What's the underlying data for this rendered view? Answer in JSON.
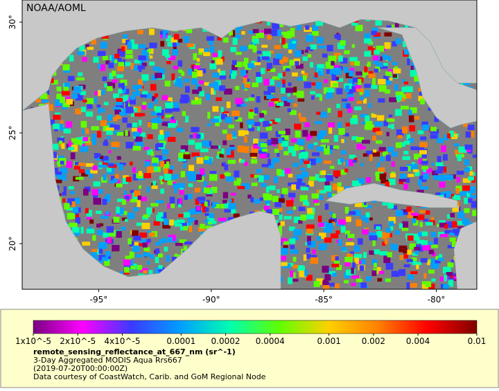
{
  "map": {
    "credit": "NOAA/AOML",
    "lonlim": [
      -98.4,
      -78.2
    ],
    "latlim": [
      17.94,
      31.0
    ],
    "lon_ticks": [
      {
        "value": -95,
        "label": "-95°"
      },
      {
        "value": -90,
        "label": "-90°"
      },
      {
        "value": -85,
        "label": "-85°"
      },
      {
        "value": -80,
        "label": "-80°"
      }
    ],
    "lat_ticks": [
      {
        "value": 30,
        "label": "30°"
      },
      {
        "value": 25,
        "label": "25°"
      },
      {
        "value": 20,
        "label": "20°"
      }
    ]
  },
  "colorbar": {
    "scale": "log",
    "lim": [
      1e-05,
      0.01
    ],
    "colors": [
      "#7a0080",
      "#ff00ff",
      "#3a3aff",
      "#00a0ff",
      "#00ffb0",
      "#60ff00",
      "#ffd000",
      "#ff8000",
      "#ff0000",
      "#800000"
    ],
    "ticks": [
      {
        "value": 1e-05,
        "label": "1x10^-5"
      },
      {
        "value": 2e-05,
        "label": "2x10^-5"
      },
      {
        "value": 4e-05,
        "label": "4x10^-5"
      },
      {
        "value": 0.0001,
        "label": "0.0001"
      },
      {
        "value": 0.0002,
        "label": "0.0002"
      },
      {
        "value": 0.0004,
        "label": "0.0004"
      },
      {
        "value": 0.001,
        "label": "0.001"
      },
      {
        "value": 0.002,
        "label": "0.002"
      },
      {
        "value": 0.004,
        "label": "0.004"
      },
      {
        "value": 0.01,
        "label": "0.01"
      }
    ]
  },
  "caption": {
    "variable": "remote_sensing_reflectance_at_667_nm (sr^-1)",
    "line1": "3-Day Aggregated MODIS Aqua Rrs667",
    "line2": "(2019-07-20T00:00:00Z)",
    "line3": "Data courtesy of CoastWatch, Carib. and GoM Regional Node"
  }
}
